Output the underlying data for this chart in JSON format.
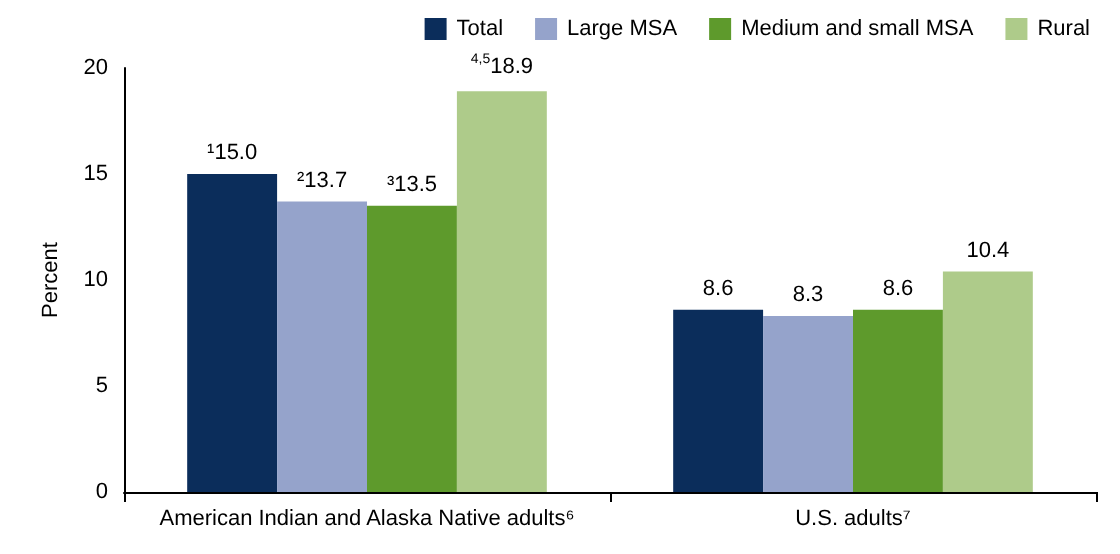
{
  "chart_data": {
    "type": "bar",
    "ylabel": "Percent",
    "categories": [
      "American Indian and Alaska Native adults⁶",
      "U.S. adults⁷"
    ],
    "series": [
      {
        "name": "Total",
        "color": "#0b2d5b",
        "values": [
          15.0,
          8.6
        ],
        "value_labels": [
          "¹15.0",
          "8.6"
        ]
      },
      {
        "name": "Large MSA",
        "color": "#95a3cb",
        "values": [
          13.7,
          8.3
        ],
        "value_labels": [
          "²13.7",
          "8.3"
        ]
      },
      {
        "name": "Medium and small MSA",
        "color": "#5e9a2c",
        "values": [
          13.5,
          8.6
        ],
        "value_labels": [
          "³13.5",
          "8.6"
        ]
      },
      {
        "name": "Rural",
        "color": "#aecb8a",
        "values": [
          18.9,
          10.4
        ],
        "value_labels": [
          "$^{4,5}$18.9",
          "10.4"
        ]
      }
    ],
    "ylim": [
      0,
      20
    ],
    "yticks": [
      0,
      5,
      10,
      15,
      20
    ],
    "grid": false,
    "legend": "top right"
  }
}
